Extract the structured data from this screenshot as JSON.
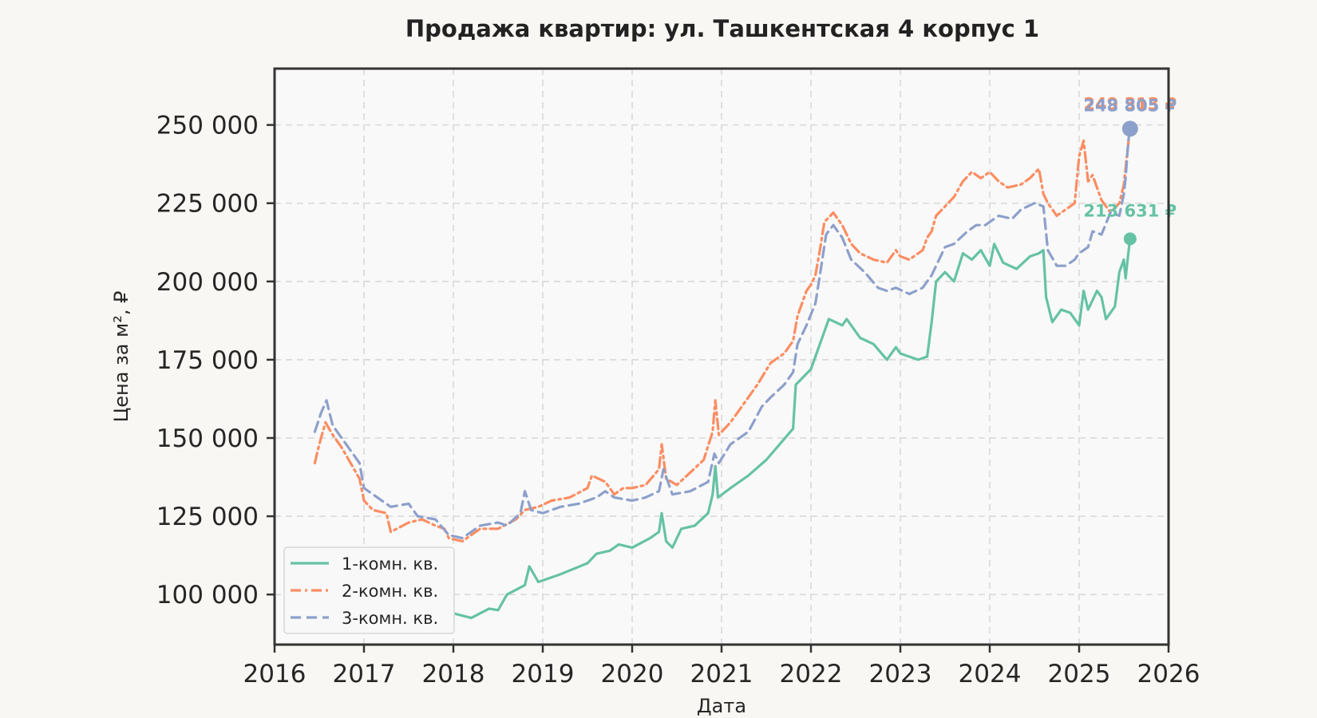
{
  "chart_data": {
    "type": "line",
    "title": "Продажа квартир: ул. Ташкентская 4 корпус 1",
    "xlabel": "Дата",
    "ylabel": "Цена за м², ₽",
    "xlim": [
      2016,
      2026
    ],
    "ylim": [
      84000,
      268000
    ],
    "xticks": [
      {
        "value": 2016,
        "label": "2016"
      },
      {
        "value": 2017,
        "label": "2017"
      },
      {
        "value": 2018,
        "label": "2018"
      },
      {
        "value": 2019,
        "label": "2019"
      },
      {
        "value": 2020,
        "label": "2020"
      },
      {
        "value": 2021,
        "label": "2021"
      },
      {
        "value": 2022,
        "label": "2022"
      },
      {
        "value": 2023,
        "label": "2023"
      },
      {
        "value": 2024,
        "label": "2024"
      },
      {
        "value": 2025,
        "label": "2025"
      },
      {
        "value": 2026,
        "label": "2026"
      }
    ],
    "yticks": [
      {
        "value": 100000,
        "label": "100 000"
      },
      {
        "value": 125000,
        "label": "125 000"
      },
      {
        "value": 150000,
        "label": "150 000"
      },
      {
        "value": 175000,
        "label": "175 000"
      },
      {
        "value": 200000,
        "label": "200 000"
      },
      {
        "value": 225000,
        "label": "225 000"
      },
      {
        "value": 250000,
        "label": "250 000"
      }
    ],
    "grid": true,
    "legend_position": "lower-left",
    "series": [
      {
        "name": "1-комн. кв.",
        "color": "#66c2a5",
        "line_style": "solid",
        "points": [
          [
            2018.0,
            94000
          ],
          [
            2018.2,
            92500
          ],
          [
            2018.4,
            95500
          ],
          [
            2018.5,
            95000
          ],
          [
            2018.6,
            100000
          ],
          [
            2018.8,
            103000
          ],
          [
            2018.85,
            109000
          ],
          [
            2018.95,
            104000
          ],
          [
            2019.2,
            106500
          ],
          [
            2019.5,
            110000
          ],
          [
            2019.6,
            113000
          ],
          [
            2019.75,
            114000
          ],
          [
            2019.85,
            116000
          ],
          [
            2020.0,
            115000
          ],
          [
            2020.2,
            118000
          ],
          [
            2020.3,
            120000
          ],
          [
            2020.33,
            126000
          ],
          [
            2020.38,
            117000
          ],
          [
            2020.45,
            115000
          ],
          [
            2020.55,
            121000
          ],
          [
            2020.7,
            122000
          ],
          [
            2020.85,
            126000
          ],
          [
            2020.9,
            132000
          ],
          [
            2020.93,
            141000
          ],
          [
            2020.96,
            131000
          ],
          [
            2021.1,
            134000
          ],
          [
            2021.3,
            138000
          ],
          [
            2021.5,
            143000
          ],
          [
            2021.65,
            148000
          ],
          [
            2021.8,
            153000
          ],
          [
            2021.83,
            167000
          ],
          [
            2022.0,
            172000
          ],
          [
            2022.1,
            180000
          ],
          [
            2022.2,
            188000
          ],
          [
            2022.35,
            186000
          ],
          [
            2022.4,
            188000
          ],
          [
            2022.55,
            182000
          ],
          [
            2022.7,
            180000
          ],
          [
            2022.85,
            175000
          ],
          [
            2022.95,
            179000
          ],
          [
            2023.0,
            177000
          ],
          [
            2023.2,
            175000
          ],
          [
            2023.3,
            176000
          ],
          [
            2023.35,
            187000
          ],
          [
            2023.4,
            200000
          ],
          [
            2023.5,
            203000
          ],
          [
            2023.6,
            200000
          ],
          [
            2023.7,
            209000
          ],
          [
            2023.8,
            207000
          ],
          [
            2023.9,
            210000
          ],
          [
            2024.0,
            205000
          ],
          [
            2024.05,
            212000
          ],
          [
            2024.15,
            206000
          ],
          [
            2024.3,
            204000
          ],
          [
            2024.45,
            208000
          ],
          [
            2024.55,
            209000
          ],
          [
            2024.6,
            210000
          ],
          [
            2024.63,
            195000
          ],
          [
            2024.7,
            187000
          ],
          [
            2024.8,
            191000
          ],
          [
            2024.9,
            190000
          ],
          [
            2025.0,
            186000
          ],
          [
            2025.05,
            197000
          ],
          [
            2025.1,
            191000
          ],
          [
            2025.2,
            197000
          ],
          [
            2025.25,
            195000
          ],
          [
            2025.3,
            188000
          ],
          [
            2025.4,
            192000
          ],
          [
            2025.45,
            203000
          ],
          [
            2025.5,
            207000
          ],
          [
            2025.52,
            201000
          ],
          [
            2025.55,
            209000
          ],
          [
            2025.57,
            213631
          ]
        ],
        "end_value": 213631,
        "end_label": "213 631 ₽"
      },
      {
        "name": "2-комн. кв.",
        "color": "#fc8d62",
        "line_style": "dashdot",
        "points": [
          [
            2016.45,
            142000
          ],
          [
            2016.5,
            148000
          ],
          [
            2016.57,
            155000
          ],
          [
            2016.65,
            151000
          ],
          [
            2016.75,
            147000
          ],
          [
            2016.85,
            142000
          ],
          [
            2016.95,
            137000
          ],
          [
            2017.0,
            130000
          ],
          [
            2017.1,
            127000
          ],
          [
            2017.25,
            126000
          ],
          [
            2017.3,
            120000
          ],
          [
            2017.5,
            123000
          ],
          [
            2017.65,
            124000
          ],
          [
            2017.8,
            122000
          ],
          [
            2017.9,
            121000
          ],
          [
            2017.95,
            118000
          ],
          [
            2018.1,
            117000
          ],
          [
            2018.3,
            121000
          ],
          [
            2018.5,
            121000
          ],
          [
            2018.7,
            124000
          ],
          [
            2018.8,
            127000
          ],
          [
            2018.95,
            128000
          ],
          [
            2019.1,
            130000
          ],
          [
            2019.3,
            131000
          ],
          [
            2019.5,
            134000
          ],
          [
            2019.55,
            138000
          ],
          [
            2019.7,
            136000
          ],
          [
            2019.8,
            132000
          ],
          [
            2019.9,
            134000
          ],
          [
            2020.0,
            134000
          ],
          [
            2020.15,
            135000
          ],
          [
            2020.3,
            140000
          ],
          [
            2020.33,
            148000
          ],
          [
            2020.38,
            137000
          ],
          [
            2020.5,
            135000
          ],
          [
            2020.65,
            139000
          ],
          [
            2020.8,
            143000
          ],
          [
            2020.9,
            152000
          ],
          [
            2020.93,
            162000
          ],
          [
            2020.97,
            151000
          ],
          [
            2021.1,
            155000
          ],
          [
            2021.25,
            161000
          ],
          [
            2021.4,
            167000
          ],
          [
            2021.55,
            174000
          ],
          [
            2021.7,
            177000
          ],
          [
            2021.8,
            181000
          ],
          [
            2021.85,
            189000
          ],
          [
            2021.95,
            197000
          ],
          [
            2022.0,
            199000
          ],
          [
            2022.05,
            202000
          ],
          [
            2022.1,
            210000
          ],
          [
            2022.15,
            219000
          ],
          [
            2022.25,
            222000
          ],
          [
            2022.35,
            218000
          ],
          [
            2022.45,
            212000
          ],
          [
            2022.55,
            209000
          ],
          [
            2022.7,
            207000
          ],
          [
            2022.85,
            206000
          ],
          [
            2022.95,
            210000
          ],
          [
            2023.0,
            208000
          ],
          [
            2023.1,
            207000
          ],
          [
            2023.25,
            210000
          ],
          [
            2023.3,
            214000
          ],
          [
            2023.35,
            216000
          ],
          [
            2023.4,
            221000
          ],
          [
            2023.5,
            224000
          ],
          [
            2023.6,
            227000
          ],
          [
            2023.7,
            232000
          ],
          [
            2023.8,
            235000
          ],
          [
            2023.9,
            233000
          ],
          [
            2024.0,
            235000
          ],
          [
            2024.1,
            232000
          ],
          [
            2024.2,
            230000
          ],
          [
            2024.35,
            231000
          ],
          [
            2024.45,
            233000
          ],
          [
            2024.55,
            236000
          ],
          [
            2024.6,
            228000
          ],
          [
            2024.65,
            225000
          ],
          [
            2024.75,
            221000
          ],
          [
            2024.85,
            223000
          ],
          [
            2024.95,
            225000
          ],
          [
            2025.0,
            240000
          ],
          [
            2025.05,
            245000
          ],
          [
            2025.1,
            232000
          ],
          [
            2025.15,
            234000
          ],
          [
            2025.25,
            226000
          ],
          [
            2025.35,
            222000
          ],
          [
            2025.45,
            225000
          ],
          [
            2025.5,
            231000
          ],
          [
            2025.55,
            244000
          ],
          [
            2025.57,
            249313
          ]
        ],
        "end_value": 249313,
        "end_label": "249 313 ₽"
      },
      {
        "name": "3-комн. кв.",
        "color": "#8da0cb",
        "line_style": "dashed",
        "points": [
          [
            2016.45,
            152000
          ],
          [
            2016.52,
            158000
          ],
          [
            2016.58,
            162000
          ],
          [
            2016.65,
            154000
          ],
          [
            2016.75,
            150000
          ],
          [
            2016.85,
            146000
          ],
          [
            2016.95,
            142000
          ],
          [
            2017.0,
            134000
          ],
          [
            2017.15,
            131000
          ],
          [
            2017.3,
            128000
          ],
          [
            2017.5,
            129000
          ],
          [
            2017.6,
            125000
          ],
          [
            2017.8,
            124000
          ],
          [
            2017.95,
            119000
          ],
          [
            2018.1,
            118000
          ],
          [
            2018.3,
            122000
          ],
          [
            2018.5,
            123000
          ],
          [
            2018.6,
            122000
          ],
          [
            2018.75,
            126000
          ],
          [
            2018.8,
            133000
          ],
          [
            2018.87,
            127000
          ],
          [
            2019.0,
            126000
          ],
          [
            2019.2,
            128000
          ],
          [
            2019.4,
            129000
          ],
          [
            2019.5,
            130000
          ],
          [
            2019.6,
            131000
          ],
          [
            2019.7,
            133000
          ],
          [
            2019.8,
            131000
          ],
          [
            2020.0,
            130000
          ],
          [
            2020.15,
            131000
          ],
          [
            2020.3,
            133000
          ],
          [
            2020.35,
            140000
          ],
          [
            2020.45,
            132000
          ],
          [
            2020.65,
            133000
          ],
          [
            2020.85,
            136000
          ],
          [
            2020.92,
            145000
          ],
          [
            2020.97,
            142000
          ],
          [
            2021.1,
            148000
          ],
          [
            2021.3,
            152000
          ],
          [
            2021.45,
            160000
          ],
          [
            2021.55,
            163000
          ],
          [
            2021.7,
            167000
          ],
          [
            2021.8,
            171000
          ],
          [
            2021.85,
            180000
          ],
          [
            2021.95,
            186000
          ],
          [
            2022.05,
            193000
          ],
          [
            2022.1,
            202000
          ],
          [
            2022.17,
            215000
          ],
          [
            2022.25,
            218000
          ],
          [
            2022.35,
            214000
          ],
          [
            2022.45,
            207000
          ],
          [
            2022.6,
            203000
          ],
          [
            2022.75,
            198000
          ],
          [
            2022.85,
            197000
          ],
          [
            2022.95,
            198000
          ],
          [
            2023.1,
            196000
          ],
          [
            2023.25,
            198000
          ],
          [
            2023.35,
            202000
          ],
          [
            2023.4,
            205000
          ],
          [
            2023.5,
            211000
          ],
          [
            2023.6,
            212000
          ],
          [
            2023.75,
            216000
          ],
          [
            2023.85,
            218000
          ],
          [
            2023.95,
            218000
          ],
          [
            2024.1,
            221000
          ],
          [
            2024.25,
            220000
          ],
          [
            2024.35,
            223000
          ],
          [
            2024.5,
            225000
          ],
          [
            2024.6,
            224000
          ],
          [
            2024.65,
            210000
          ],
          [
            2024.75,
            205000
          ],
          [
            2024.85,
            205000
          ],
          [
            2024.95,
            207000
          ],
          [
            2025.0,
            209000
          ],
          [
            2025.1,
            211000
          ],
          [
            2025.15,
            216000
          ],
          [
            2025.25,
            215000
          ],
          [
            2025.35,
            222000
          ],
          [
            2025.45,
            221000
          ],
          [
            2025.5,
            228000
          ],
          [
            2025.52,
            233000
          ],
          [
            2025.55,
            245000
          ],
          [
            2025.57,
            248805
          ]
        ],
        "end_value": 248805,
        "end_label": "248 805 ₽"
      }
    ]
  }
}
